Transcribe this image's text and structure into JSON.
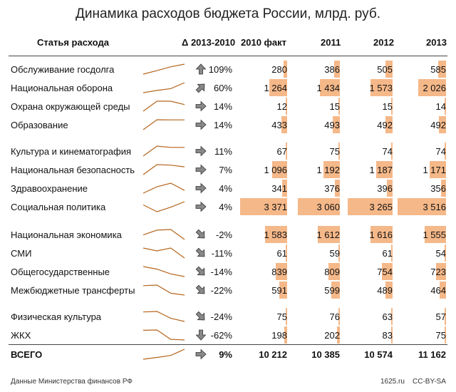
{
  "title": "Динамика расходов бюджета России, млрд. руб.",
  "headers": {
    "item": "Статья расхода",
    "delta": "Δ 2013-2010",
    "y2010": "2010 факт",
    "y2011": "2011",
    "y2012": "2012",
    "y2013": "2013"
  },
  "chart_data": {
    "type": "table",
    "columns": [
      "2010 факт",
      "2011",
      "2012",
      "2013"
    ],
    "rows": [
      {
        "label": "Обслуживание госдолга",
        "values": [
          280,
          386,
          505,
          585
        ],
        "display": [
          "280",
          "386",
          "505",
          "585"
        ],
        "delta": "109%",
        "arrow": "up",
        "group": 0
      },
      {
        "label": "Национальная оборона",
        "values": [
          1264,
          1434,
          1573,
          2026
        ],
        "display": [
          "1 264",
          "1 434",
          "1 573",
          "2 026"
        ],
        "delta": "60%",
        "arrow": "up-right",
        "group": 0
      },
      {
        "label": "Охрана окружающей среды",
        "values": [
          12,
          15,
          15,
          14
        ],
        "display": [
          "12",
          "15",
          "15",
          "14"
        ],
        "delta": "14%",
        "arrow": "right",
        "group": 0
      },
      {
        "label": "Образование",
        "values": [
          433,
          493,
          492,
          492
        ],
        "display": [
          "433",
          "493",
          "492",
          "492"
        ],
        "delta": "14%",
        "arrow": "right",
        "group": 0
      },
      {
        "label": "Культура и кинематография",
        "values": [
          67,
          75,
          74,
          74
        ],
        "display": [
          "67",
          "75",
          "74",
          "74"
        ],
        "delta": "11%",
        "arrow": "right",
        "group": 1
      },
      {
        "label": "Национальная безопасность",
        "values": [
          1096,
          1192,
          1187,
          1171
        ],
        "display": [
          "1 096",
          "1 192",
          "1 187",
          "1 171"
        ],
        "delta": "7%",
        "arrow": "right",
        "group": 1
      },
      {
        "label": "Здравоохранение",
        "values": [
          341,
          376,
          396,
          356
        ],
        "display": [
          "341",
          "376",
          "396",
          "356"
        ],
        "delta": "4%",
        "arrow": "right",
        "group": 1
      },
      {
        "label": "Социальная политика",
        "values": [
          3371,
          3060,
          3265,
          3516
        ],
        "display": [
          "3 371",
          "3 060",
          "3 265",
          "3 516"
        ],
        "delta": "4%",
        "arrow": "right",
        "group": 1
      },
      {
        "label": "Национальная экономика",
        "values": [
          1583,
          1612,
          1616,
          1555
        ],
        "display": [
          "1 583",
          "1 612",
          "1 616",
          "1 555"
        ],
        "delta": "-2%",
        "arrow": "down-right",
        "group": 2
      },
      {
        "label": "СМИ",
        "values": [
          61,
          59,
          61,
          54
        ],
        "display": [
          "61",
          "59",
          "61",
          "54"
        ],
        "delta": "-11%",
        "arrow": "down-right",
        "group": 2
      },
      {
        "label": "Общегосударственные",
        "values": [
          839,
          809,
          754,
          723
        ],
        "display": [
          "839",
          "809",
          "754",
          "723"
        ],
        "delta": "-14%",
        "arrow": "down-right",
        "group": 2
      },
      {
        "label": "Межбюджетные трансферты",
        "values": [
          591,
          599,
          489,
          464
        ],
        "display": [
          "591",
          "599",
          "489",
          "464"
        ],
        "delta": "-22%",
        "arrow": "down-right",
        "group": 2
      },
      {
        "label": "Физическая культура",
        "values": [
          75,
          76,
          63,
          57
        ],
        "display": [
          "75",
          "76",
          "63",
          "57"
        ],
        "delta": "-24%",
        "arrow": "down-right",
        "group": 3
      },
      {
        "label": "ЖКХ",
        "values": [
          198,
          202,
          83,
          75
        ],
        "display": [
          "198",
          "202",
          "83",
          "75"
        ],
        "delta": "-62%",
        "arrow": "down",
        "group": 3
      }
    ],
    "total": {
      "label": "ВСЕГО",
      "values": [
        10212,
        10385,
        10574,
        11162
      ],
      "display": [
        "10 212",
        "10 385",
        "10 574",
        "11 162"
      ],
      "delta": "9%",
      "arrow": "right"
    }
  },
  "colors": {
    "bar": "#f5b889",
    "spark": "#b5651d",
    "arrow_fill": "#888888",
    "arrow_stroke": "#333333"
  },
  "footer": {
    "source": "Данные Министерства финансов РФ",
    "site": "1625.ru",
    "license": "CC-BY-SA"
  }
}
